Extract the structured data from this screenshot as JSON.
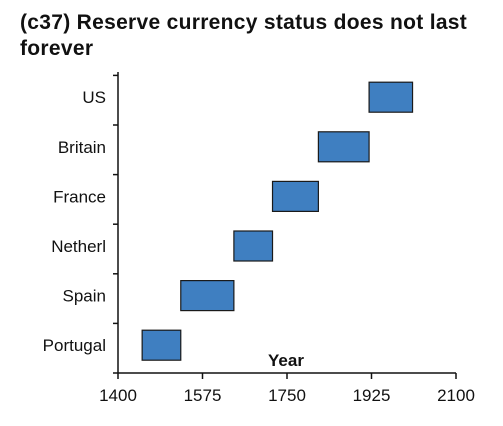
{
  "chart_data": {
    "type": "bar",
    "orientation": "horizontal-range",
    "title": "(c37) Reserve currency status does not last forever",
    "xlabel": "Year",
    "ylabel": "",
    "xlim": [
      1400,
      2100
    ],
    "xticks": [
      1400,
      1575,
      1750,
      1925,
      2100
    ],
    "grid": false,
    "bar_color": "#3f7fc1",
    "bar_edge_color": "#1a1a1a",
    "categories": [
      "Portugal",
      "Spain",
      "Netherl",
      "France",
      "Britain",
      "US"
    ],
    "ranges": [
      {
        "category": "Portugal",
        "start": 1450,
        "end": 1530
      },
      {
        "category": "Spain",
        "start": 1530,
        "end": 1640
      },
      {
        "category": "Netherl",
        "start": 1640,
        "end": 1720
      },
      {
        "category": "France",
        "start": 1720,
        "end": 1815
      },
      {
        "category": "Britain",
        "start": 1815,
        "end": 1920
      },
      {
        "category": "US",
        "start": 1920,
        "end": 2010
      }
    ]
  }
}
